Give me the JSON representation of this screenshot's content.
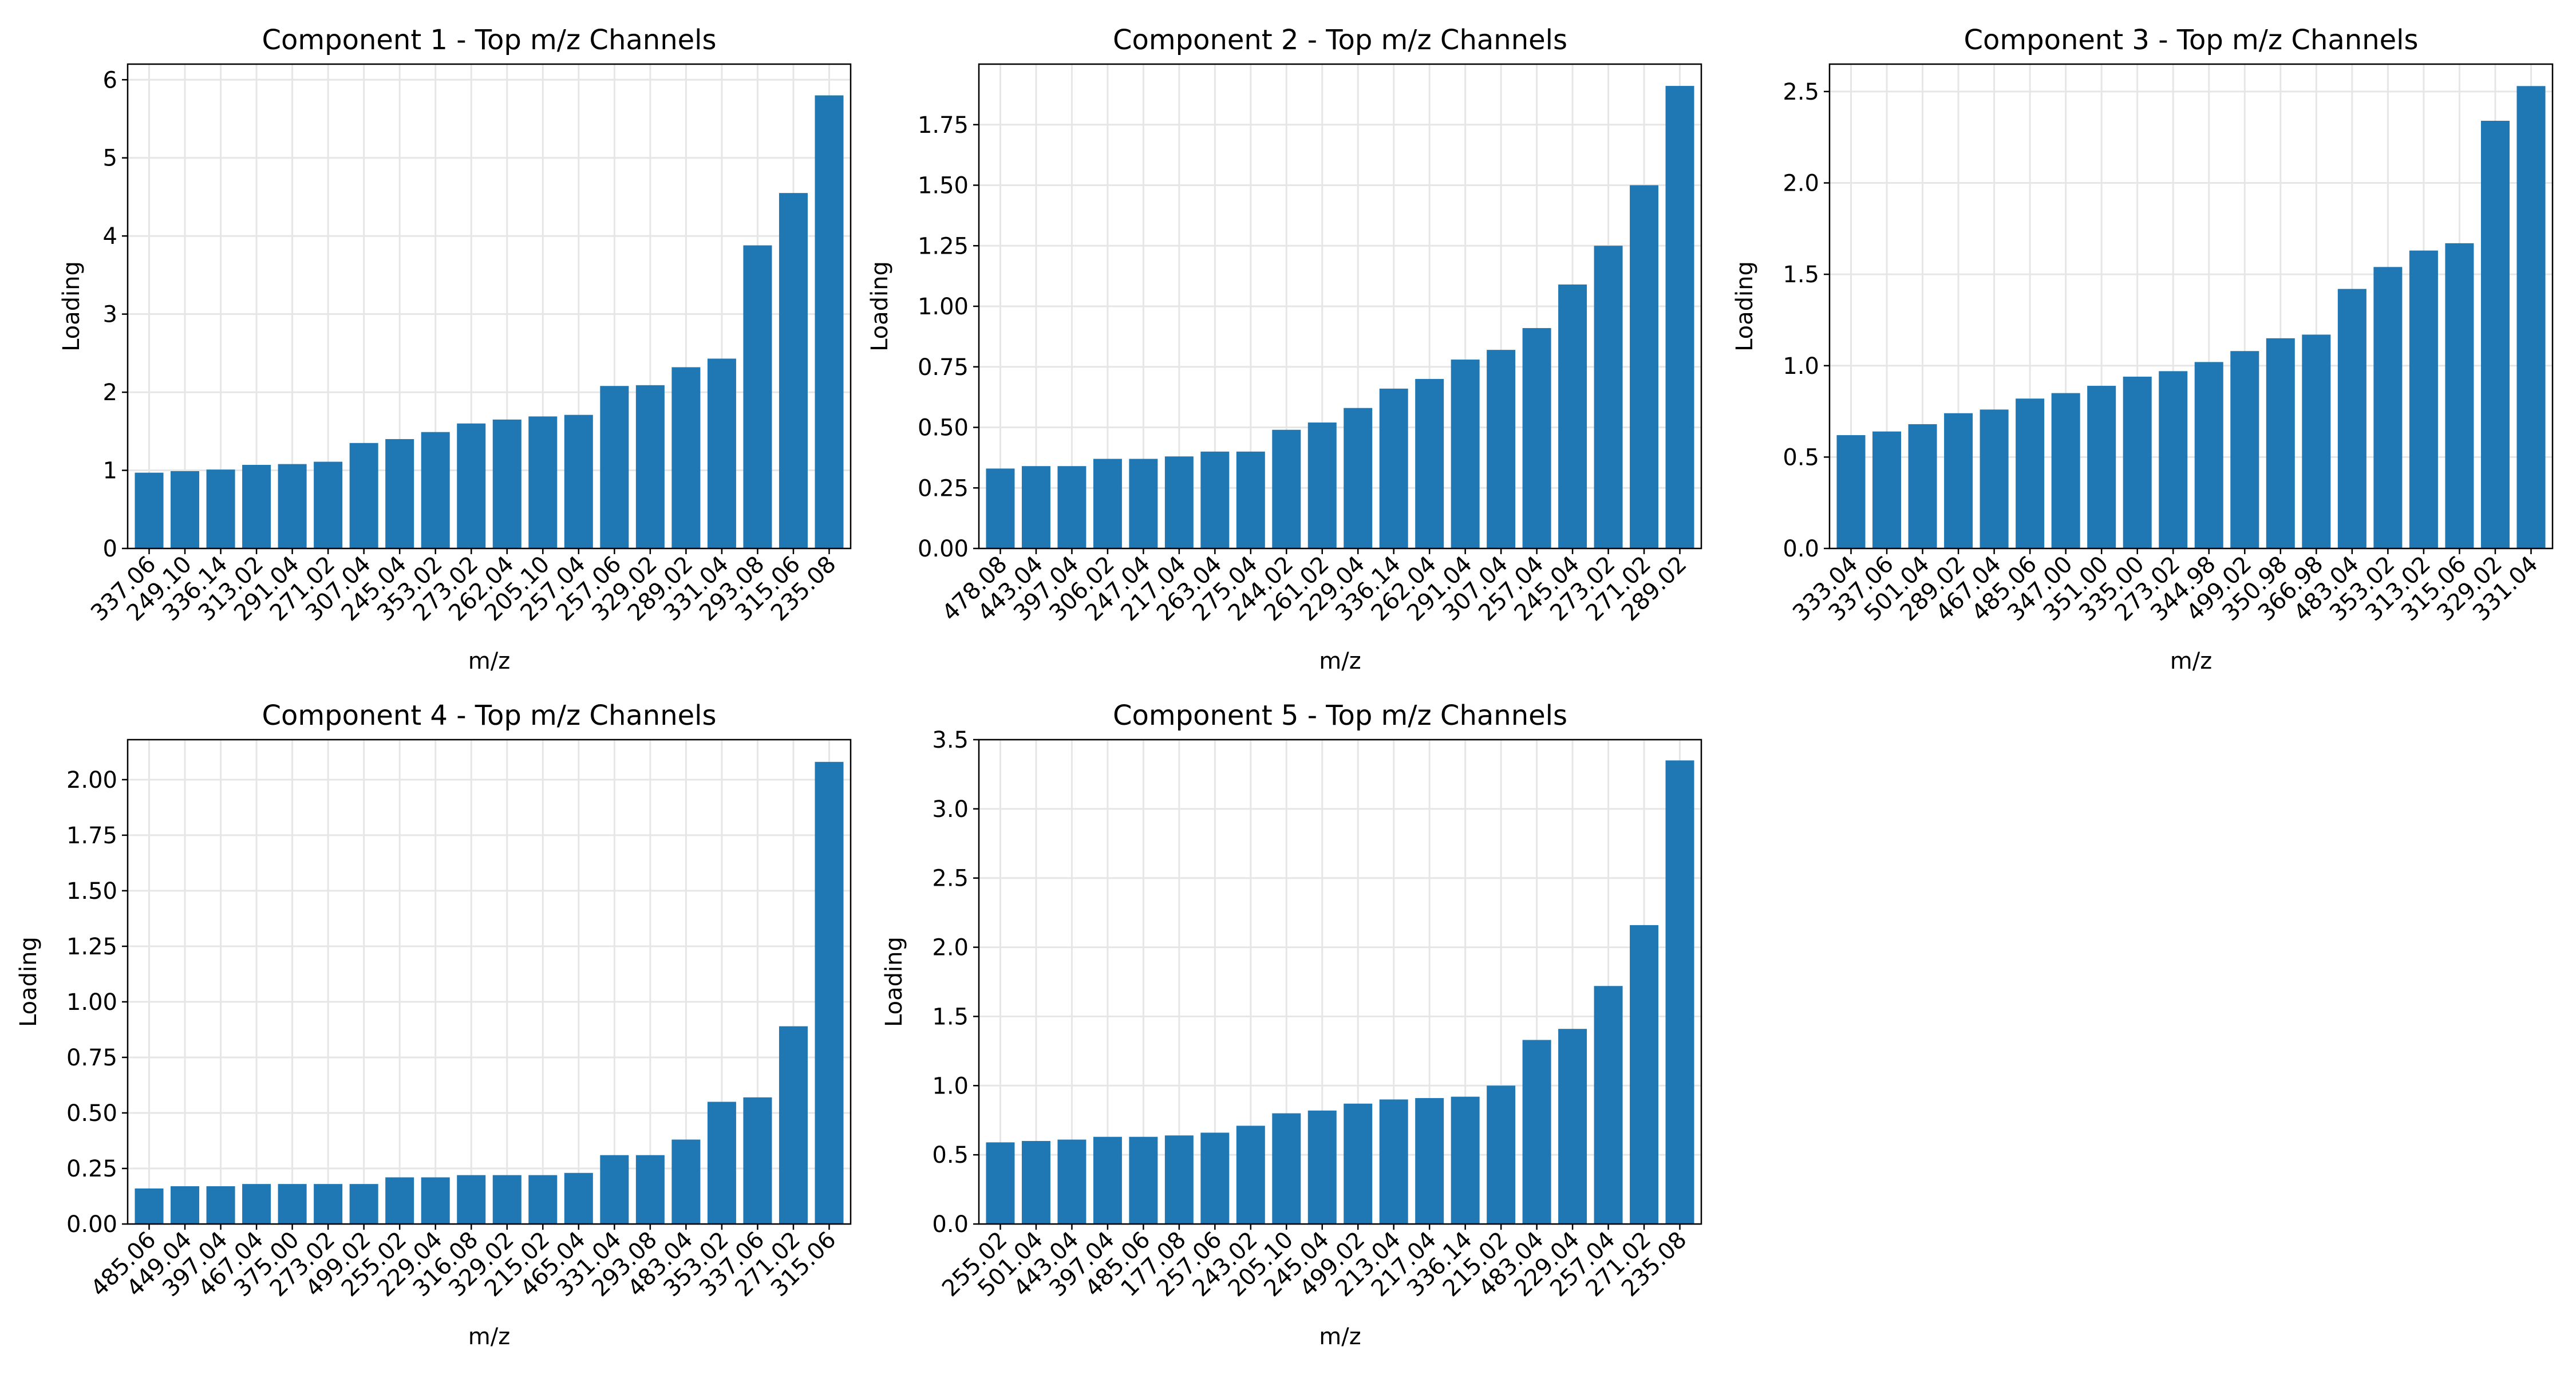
{
  "figure": {
    "bar_color": "#1f77b4",
    "grid_color": "#e6e6e6",
    "layout": "2 rows x 3 columns, bottom-right panel empty"
  },
  "chart_data": [
    {
      "type": "bar",
      "title": "Component 1 - Top m/z Channels",
      "xlabel": "m/z",
      "ylabel": "Loading",
      "categories": [
        "337.06",
        "249.10",
        "336.14",
        "313.02",
        "291.04",
        "271.02",
        "307.04",
        "245.04",
        "353.02",
        "273.02",
        "262.04",
        "205.10",
        "257.04",
        "257.06",
        "329.02",
        "289.02",
        "331.04",
        "293.08",
        "315.06",
        "235.08"
      ],
      "values": [
        0.97,
        0.99,
        1.01,
        1.07,
        1.08,
        1.11,
        1.35,
        1.4,
        1.49,
        1.6,
        1.65,
        1.69,
        1.71,
        2.08,
        2.09,
        2.32,
        2.43,
        3.88,
        4.55,
        5.8
      ],
      "ylim": [
        0,
        6.2
      ],
      "yticks": [
        0,
        1,
        2,
        3,
        4,
        5,
        6
      ],
      "ytick_labels": [
        "0",
        "1",
        "2",
        "3",
        "4",
        "5",
        "6"
      ],
      "grid": true
    },
    {
      "type": "bar",
      "title": "Component 2 - Top m/z Channels",
      "xlabel": "m/z",
      "ylabel": "Loading",
      "categories": [
        "478.08",
        "443.04",
        "397.04",
        "306.02",
        "247.04",
        "217.04",
        "263.04",
        "275.04",
        "244.02",
        "261.02",
        "229.04",
        "336.14",
        "262.04",
        "291.04",
        "307.04",
        "257.04",
        "245.04",
        "273.02",
        "271.02",
        "289.02"
      ],
      "values": [
        0.33,
        0.34,
        0.34,
        0.37,
        0.37,
        0.38,
        0.4,
        0.4,
        0.49,
        0.52,
        0.58,
        0.66,
        0.7,
        0.78,
        0.82,
        0.91,
        1.09,
        1.25,
        1.5,
        1.91
      ],
      "ylim": [
        0,
        2.0
      ],
      "yticks": [
        0,
        0.25,
        0.5,
        0.75,
        1.0,
        1.25,
        1.5,
        1.75
      ],
      "ytick_labels": [
        "0.00",
        "0.25",
        "0.50",
        "0.75",
        "1.00",
        "1.25",
        "1.50",
        "1.75"
      ],
      "grid": true
    },
    {
      "type": "bar",
      "title": "Component 3 - Top m/z Channels",
      "xlabel": "m/z",
      "ylabel": "Loading",
      "categories": [
        "333.04",
        "337.06",
        "501.04",
        "289.02",
        "467.04",
        "485.06",
        "347.00",
        "351.00",
        "335.00",
        "273.02",
        "344.98",
        "499.02",
        "350.98",
        "366.98",
        "483.04",
        "353.02",
        "313.02",
        "315.06",
        "329.02",
        "331.04"
      ],
      "values": [
        0.62,
        0.64,
        0.68,
        0.74,
        0.76,
        0.82,
        0.85,
        0.89,
        0.94,
        0.97,
        1.02,
        1.08,
        1.15,
        1.17,
        1.42,
        1.54,
        1.63,
        1.67,
        2.34,
        2.53
      ],
      "ylim": [
        0,
        2.65
      ],
      "yticks": [
        0,
        0.5,
        1.0,
        1.5,
        2.0,
        2.5
      ],
      "ytick_labels": [
        "0.0",
        "0.5",
        "1.0",
        "1.5",
        "2.0",
        "2.5"
      ],
      "grid": true
    },
    {
      "type": "bar",
      "title": "Component 4 - Top m/z Channels",
      "xlabel": "m/z",
      "ylabel": "Loading",
      "categories": [
        "485.06",
        "449.04",
        "397.04",
        "467.04",
        "375.00",
        "273.02",
        "499.02",
        "255.02",
        "229.04",
        "316.08",
        "329.02",
        "215.02",
        "465.04",
        "331.04",
        "293.08",
        "483.04",
        "353.02",
        "337.06",
        "271.02",
        "315.06"
      ],
      "values": [
        0.16,
        0.17,
        0.17,
        0.18,
        0.18,
        0.18,
        0.18,
        0.21,
        0.21,
        0.22,
        0.22,
        0.22,
        0.23,
        0.31,
        0.31,
        0.38,
        0.55,
        0.57,
        0.89,
        2.08
      ],
      "ylim": [
        0,
        2.18
      ],
      "yticks": [
        0,
        0.25,
        0.5,
        0.75,
        1.0,
        1.25,
        1.5,
        1.75,
        2.0
      ],
      "ytick_labels": [
        "0.00",
        "0.25",
        "0.50",
        "0.75",
        "1.00",
        "1.25",
        "1.50",
        "1.75",
        "2.00"
      ],
      "grid": true
    },
    {
      "type": "bar",
      "title": "Component 5 - Top m/z Channels",
      "xlabel": "m/z",
      "ylabel": "Loading",
      "categories": [
        "255.02",
        "501.04",
        "443.04",
        "397.04",
        "485.06",
        "177.08",
        "257.06",
        "243.02",
        "205.10",
        "245.04",
        "499.02",
        "213.04",
        "217.04",
        "336.14",
        "215.02",
        "483.04",
        "229.04",
        "257.04",
        "271.02",
        "235.08"
      ],
      "values": [
        0.59,
        0.6,
        0.61,
        0.63,
        0.63,
        0.64,
        0.66,
        0.71,
        0.8,
        0.82,
        0.87,
        0.9,
        0.91,
        0.92,
        1.0,
        1.33,
        1.41,
        1.72,
        2.16,
        3.35
      ],
      "ylim": [
        0,
        3.5
      ],
      "yticks": [
        0,
        0.5,
        1.0,
        1.5,
        2.0,
        2.5,
        3.0,
        3.5
      ],
      "ytick_labels": [
        "0.0",
        "0.5",
        "1.0",
        "1.5",
        "2.0",
        "2.5",
        "3.0",
        "3.5"
      ],
      "grid": true
    }
  ]
}
